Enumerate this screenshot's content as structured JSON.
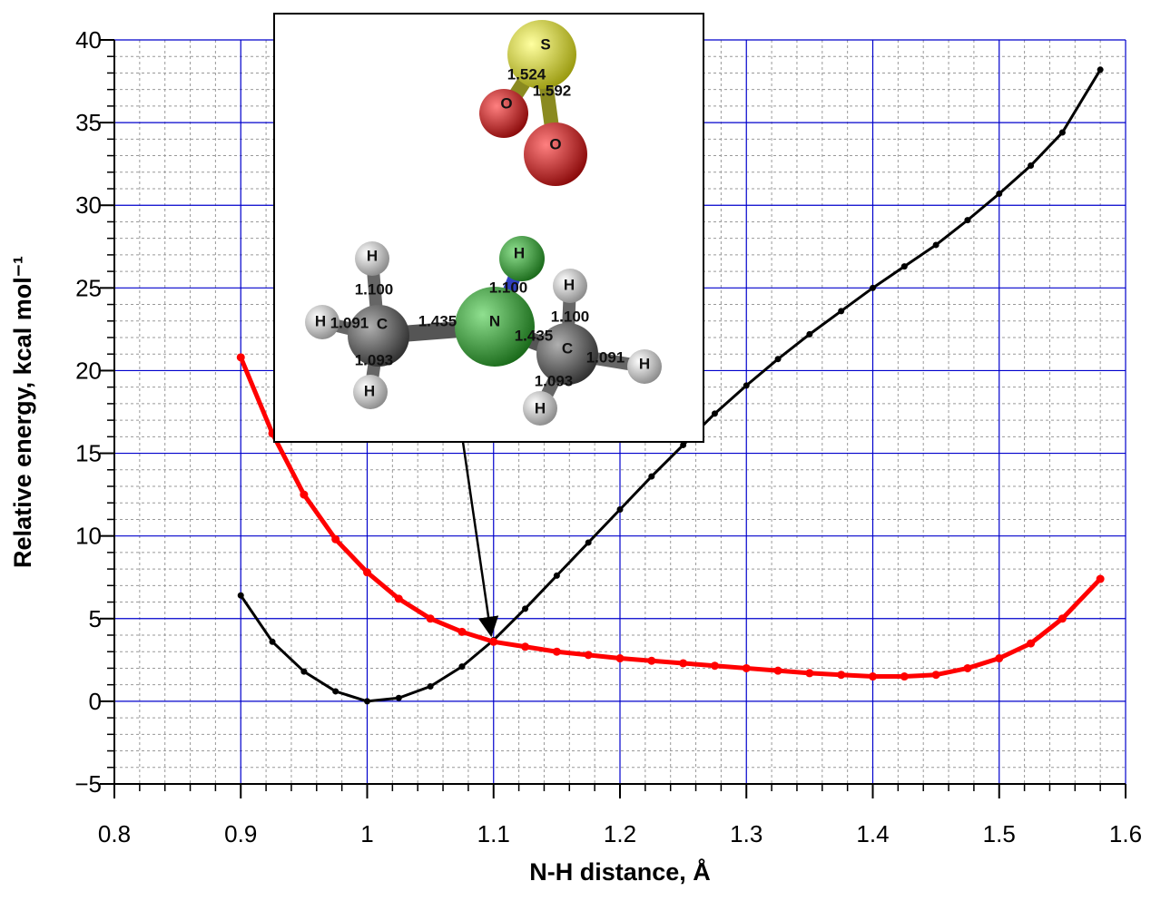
{
  "chart_data": {
    "type": "line",
    "xlabel": "N-H distance, Å",
    "ylabel": "Relative energy, kcal mol⁻¹",
    "x": [
      0.9,
      0.925,
      0.95,
      0.975,
      1.0,
      1.025,
      1.05,
      1.075,
      1.1,
      1.125,
      1.15,
      1.175,
      1.2,
      1.225,
      1.25,
      1.275,
      1.3,
      1.325,
      1.35,
      1.375,
      1.4,
      1.425,
      1.45,
      1.475,
      1.5,
      1.525,
      1.55,
      1.58
    ],
    "series": [
      {
        "color": "#000000",
        "values": [
          6.4,
          3.6,
          1.8,
          0.6,
          0.0,
          0.2,
          0.9,
          2.1,
          3.7,
          5.6,
          7.6,
          9.6,
          11.6,
          13.6,
          15.5,
          17.4,
          19.1,
          20.7,
          22.2,
          23.6,
          25.0,
          26.3,
          27.6,
          29.1,
          30.7,
          32.4,
          34.4,
          38.2
        ]
      },
      {
        "color": "#ff0000",
        "values": [
          20.8,
          16.2,
          12.5,
          9.8,
          7.8,
          6.2,
          5.0,
          4.2,
          3.6,
          3.3,
          3.0,
          2.8,
          2.6,
          2.45,
          2.3,
          2.15,
          2.0,
          1.85,
          1.7,
          1.6,
          1.5,
          1.5,
          1.6,
          2.0,
          2.6,
          3.5,
          5.0,
          7.4
        ]
      }
    ],
    "xlim": [
      0.8,
      1.6
    ],
    "xticks": [
      0.8,
      0.9,
      1,
      1.1,
      1.2,
      1.3,
      1.4,
      1.5,
      1.6
    ],
    "ylim": [
      -5,
      40
    ],
    "yticks": [
      {
        "value": -5,
        "label": "−5"
      },
      0,
      5,
      10,
      15,
      20,
      25,
      30,
      35,
      40
    ],
    "grid": true,
    "grid_color": "#0000cc",
    "minor_grid": {
      "x": 5,
      "y": 5
    },
    "inset": {
      "atoms": [
        "S",
        "O",
        "O",
        "H",
        "H",
        "H",
        "H",
        "C",
        "N",
        "C",
        "H",
        "H",
        "H"
      ],
      "bonds": [
        "1.524",
        "1.592",
        "1.100",
        "1.100",
        "1.091",
        "1.435",
        "1.100",
        "1.435",
        "1.091",
        "1.093",
        "1.093"
      ]
    }
  }
}
